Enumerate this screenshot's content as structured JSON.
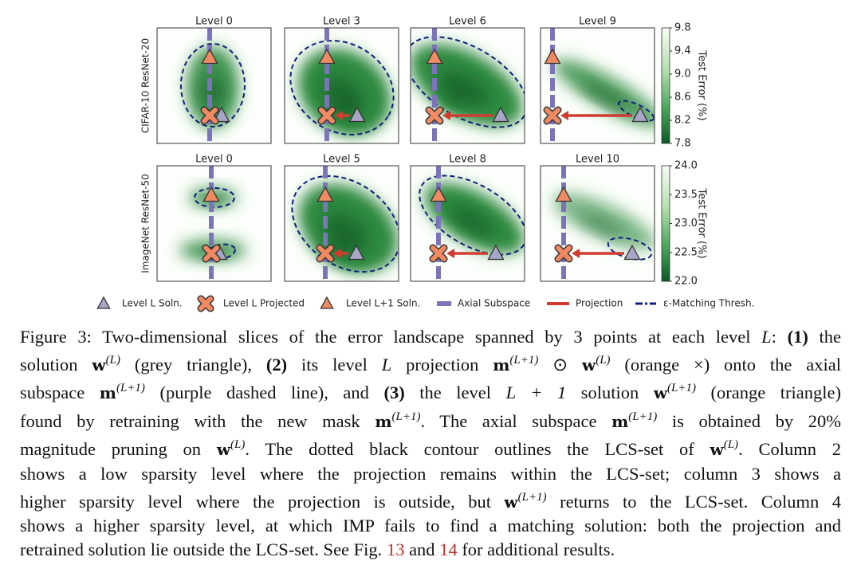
{
  "figure": {
    "rows": [
      {
        "label": "CIFAR-10 ResNet-20",
        "levels": [
          "Level 0",
          "Level 3",
          "Level 6",
          "Level 9"
        ],
        "colorbar": {
          "label": "Test Error (%)",
          "ticks": [
            "9.8",
            "9.4",
            "9.0",
            "8.6",
            "8.2",
            "7.8"
          ]
        }
      },
      {
        "label": "ImageNet ResNet-50",
        "levels": [
          "Level 0",
          "Level 5",
          "Level 8",
          "Level 10"
        ],
        "colorbar": {
          "label": "Test Error (%)",
          "ticks": [
            "24.0",
            "23.5",
            "23.0",
            "22.5",
            "22.0"
          ]
        }
      }
    ],
    "legend": [
      "Level L Soln.",
      "Level L Projected",
      "Level L+1 Soln.",
      "Axial Subspace",
      "Projection",
      "ε-Matching Thresh."
    ]
  },
  "caption": {
    "lines": [
      [
        {
          "s": "r",
          "t": "Figure 3: Two-dimensional slices of the error landscape spanned by 3 points at each level "
        },
        {
          "s": "i",
          "t": "L"
        },
        {
          "s": "r",
          "t": ": "
        },
        {
          "s": "b",
          "t": "(1)"
        },
        {
          "s": "r",
          "t": " the"
        }
      ],
      [
        {
          "s": "r",
          "t": "solution "
        },
        {
          "s": "m",
          "t": "w"
        },
        {
          "s": "sup",
          "t": "(L)"
        },
        {
          "s": "r",
          "t": " (grey triangle), "
        },
        {
          "s": "b",
          "t": "(2)"
        },
        {
          "s": "r",
          "t": " its level "
        },
        {
          "s": "i",
          "t": "L"
        },
        {
          "s": "r",
          "t": " projection "
        },
        {
          "s": "m",
          "t": "m"
        },
        {
          "s": "sup",
          "t": "(L+1)"
        },
        {
          "s": "r",
          "t": " ⊙ "
        },
        {
          "s": "m",
          "t": "w"
        },
        {
          "s": "sup",
          "t": "(L)"
        },
        {
          "s": "r",
          "t": " (orange ×) onto the axial"
        }
      ],
      [
        {
          "s": "r",
          "t": "subspace "
        },
        {
          "s": "m",
          "t": "m"
        },
        {
          "s": "sup",
          "t": "(L+1)"
        },
        {
          "s": "r",
          "t": " (purple dashed line), and "
        },
        {
          "s": "b",
          "t": "(3)"
        },
        {
          "s": "r",
          "t": " the level "
        },
        {
          "s": "i",
          "t": "L + 1"
        },
        {
          "s": "r",
          "t": " solution "
        },
        {
          "s": "m",
          "t": "w"
        },
        {
          "s": "sup",
          "t": "(L+1)"
        },
        {
          "s": "r",
          "t": " (orange triangle)"
        }
      ],
      [
        {
          "s": "r",
          "t": "found by retraining with the new mask "
        },
        {
          "s": "m",
          "t": "m"
        },
        {
          "s": "sup",
          "t": "(L+1)"
        },
        {
          "s": "r",
          "t": ". The axial subspace "
        },
        {
          "s": "m",
          "t": "m"
        },
        {
          "s": "sup",
          "t": "(L+1)"
        },
        {
          "s": "r",
          "t": " is obtained by 20%"
        }
      ],
      [
        {
          "s": "r",
          "t": "magnitude pruning on "
        },
        {
          "s": "m",
          "t": "w"
        },
        {
          "s": "sup",
          "t": "(L)"
        },
        {
          "s": "r",
          "t": ". The dotted black contour outlines the LCS-set of "
        },
        {
          "s": "m",
          "t": "w"
        },
        {
          "s": "sup",
          "t": "(L)"
        },
        {
          "s": "r",
          "t": ". Column 2"
        }
      ],
      [
        {
          "s": "r",
          "t": "shows a low sparsity level where the projection remains within the LCS-set; column 3 shows a"
        }
      ],
      [
        {
          "s": "r",
          "t": "higher sparsity level where the projection is outside, but "
        },
        {
          "s": "m",
          "t": "w"
        },
        {
          "s": "sup",
          "t": "(L+1)"
        },
        {
          "s": "r",
          "t": " returns to the LCS-set. Column 4"
        }
      ],
      [
        {
          "s": "r",
          "t": "shows a higher sparsity level, at which IMP fails to find a matching solution: both the projection and"
        }
      ],
      [
        {
          "s": "r",
          "t": "retrained solution lie outside the LCS-set. See Fig. "
        },
        {
          "s": "ref",
          "t": "13"
        },
        {
          "s": "r",
          "t": " and "
        },
        {
          "s": "ref",
          "t": "14"
        },
        {
          "s": "r",
          "t": " for additional results."
        }
      ]
    ]
  }
}
